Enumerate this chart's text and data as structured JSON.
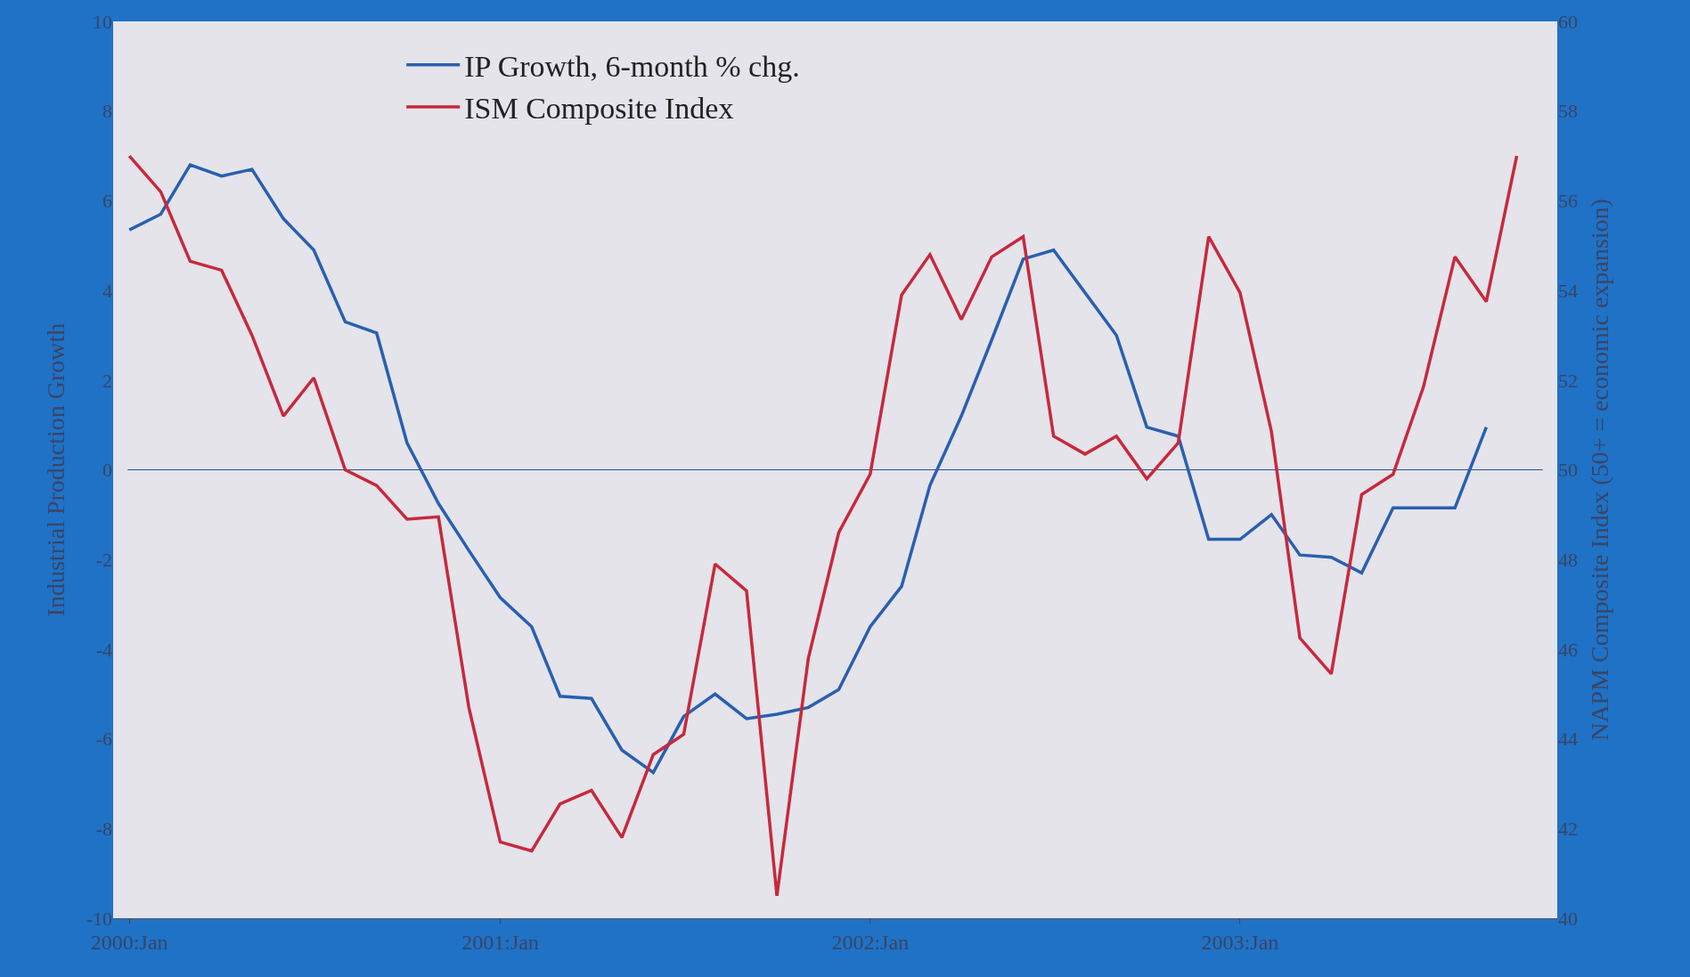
{
  "chart_data": {
    "type": "line",
    "ylabel": "Industrial Production Growth",
    "y2label": "NAPM Composite Index (50+ = economic expansion)",
    "x": [
      "2000-01",
      "2000-02",
      "2000-03",
      "2000-04",
      "2000-05",
      "2000-06",
      "2000-07",
      "2000-08",
      "2000-09",
      "2000-10",
      "2000-11",
      "2000-12",
      "2001-01",
      "2001-02",
      "2001-03",
      "2001-04",
      "2001-05",
      "2001-06",
      "2001-07",
      "2001-08",
      "2001-09",
      "2001-10",
      "2001-11",
      "2001-12",
      "2002-01",
      "2002-02",
      "2002-03",
      "2002-04",
      "2002-05",
      "2002-06",
      "2002-07",
      "2002-08",
      "2002-09",
      "2002-10",
      "2002-11",
      "2002-12",
      "2003-01",
      "2003-02",
      "2003-03",
      "2003-04",
      "2003-05",
      "2003-06",
      "2003-07",
      "2003-08",
      "2003-09",
      "2003-10"
    ],
    "series": [
      {
        "name": "IP Growth, 6-month % chg.",
        "color": "#2a5fb0",
        "values": [
          5.35,
          5.7,
          6.8,
          6.55,
          6.7,
          5.6,
          4.9,
          3.3,
          3.05,
          0.6,
          -0.75,
          -1.8,
          -2.85,
          -3.5,
          -5.05,
          -5.1,
          -6.25,
          -6.75,
          -5.5,
          -5.0,
          -5.55,
          -5.45,
          -5.3,
          -4.9,
          -3.5,
          -2.6,
          -0.35,
          1.2,
          2.9,
          4.7,
          4.9,
          3.95,
          3.0,
          0.95,
          0.75,
          -1.55,
          -1.55,
          -1.0,
          -1.9,
          -1.95,
          -2.3,
          -0.85,
          -0.85,
          -0.85,
          0.95,
          null
        ]
      },
      {
        "name": "ISM Composite Index",
        "color": "#c8283c",
        "axis": "y2",
        "values": [
          57.0,
          56.2,
          54.65,
          54.45,
          53.0,
          51.2,
          52.05,
          50.0,
          49.65,
          48.9,
          48.95,
          44.7,
          41.7,
          41.5,
          42.55,
          42.85,
          41.8,
          43.65,
          44.1,
          47.9,
          47.3,
          40.5,
          45.8,
          48.6,
          49.9,
          53.9,
          54.8,
          53.35,
          54.75,
          55.2,
          50.75,
          50.35,
          50.75,
          49.8,
          50.6,
          55.2,
          53.95,
          50.85,
          46.25,
          45.45,
          49.45,
          49.9,
          51.85,
          54.75,
          53.75,
          57.0
        ]
      }
    ],
    "xlim": [
      "1999-12-16",
      "2003-11-10"
    ],
    "xticks": [
      {
        "value": "2000-01",
        "label": "2000:Jan"
      },
      {
        "value": "2001-01",
        "label": "2001:Jan"
      },
      {
        "value": "2002-01",
        "label": "2002:Jan"
      },
      {
        "value": "2003-01",
        "label": "2003:Jan"
      }
    ],
    "ylim": [
      -10,
      10
    ],
    "yticks": [
      -10,
      -8,
      -6,
      -4,
      -2,
      0,
      2,
      4,
      6,
      8,
      10
    ],
    "y2lim": [
      40,
      60
    ],
    "y2ticks": [
      40,
      42,
      44,
      46,
      48,
      50,
      52,
      54,
      56,
      58,
      60
    ],
    "ref_lines": [
      {
        "axis": "y",
        "value": 0,
        "color": "#2a4f9a"
      }
    ],
    "grid": false,
    "legend": "top left",
    "marker": "none",
    "line_style": "solid"
  }
}
